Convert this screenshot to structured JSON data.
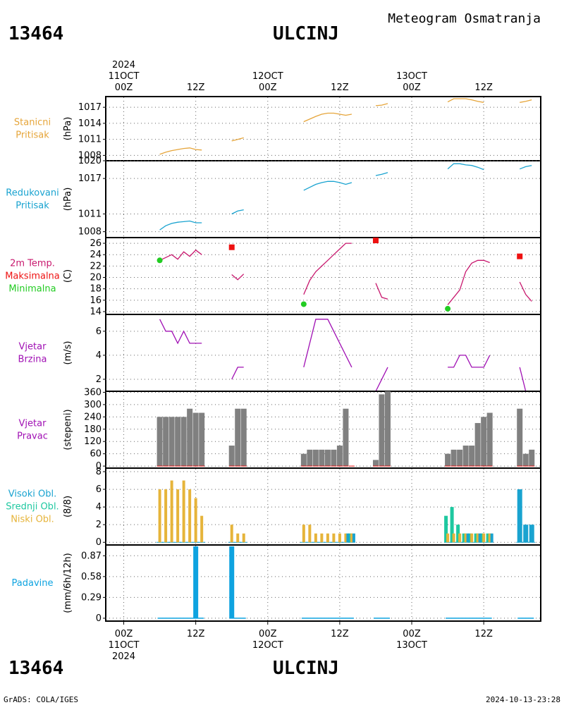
{
  "header": {
    "station_id": "13464",
    "station_name": "ULCINJ",
    "product": "Meteogram Osmatranja",
    "footer_left": "GrADS: COLA/IGES",
    "footer_right": "2024-10-13-23:28"
  },
  "time_axis": {
    "top": [
      {
        "x": 0,
        "lines": [
          "2024",
          "11OCT",
          "00Z"
        ]
      },
      {
        "x": 12,
        "lines": [
          "12Z"
        ]
      },
      {
        "x": 24,
        "lines": [
          "12OCT",
          "00Z"
        ]
      },
      {
        "x": 36,
        "lines": [
          "12Z"
        ]
      },
      {
        "x": 48,
        "lines": [
          "13OCT",
          "00Z"
        ]
      },
      {
        "x": 60,
        "lines": [
          "12Z"
        ]
      }
    ],
    "bottom": [
      {
        "x": 0,
        "lines": [
          "00Z",
          "11OCT",
          "2024"
        ]
      },
      {
        "x": 12,
        "lines": [
          "12Z"
        ]
      },
      {
        "x": 24,
        "lines": [
          "00Z",
          "12OCT"
        ]
      },
      {
        "x": 36,
        "lines": [
          "12Z"
        ]
      },
      {
        "x": 48,
        "lines": [
          "00Z",
          "13OCT"
        ]
      },
      {
        "x": 60,
        "lines": [
          "12Z"
        ]
      }
    ]
  },
  "colors": {
    "station_pressure": "#e6a53a",
    "sea_pressure": "#19a3d0",
    "temperature": "#c8186e",
    "tmax": "#ee1111",
    "tmin": "#22cc22",
    "wind": "#a010b4",
    "wind_dir_bar": "#808080",
    "cloud_high": "#19a3d0",
    "cloud_mid": "#1ec8a0",
    "cloud_low": "#e6b43a",
    "precip": "#0ea3e0",
    "grid": "#666666"
  },
  "chart_data": [
    {
      "type": "line",
      "label_lines": [
        "Stanicni",
        "Pritisak"
      ],
      "ylabel": "(hPa)",
      "ylim": [
        1007,
        1019
      ],
      "yticks": [
        1008,
        1011,
        1014,
        1017
      ],
      "segments": [
        [
          [
            6,
            1008.2
          ],
          [
            7,
            1008.6
          ],
          [
            8,
            1008.9
          ],
          [
            9,
            1009.1
          ],
          [
            10,
            1009.3
          ],
          [
            11,
            1009.4
          ],
          [
            12,
            1009.1
          ],
          [
            13,
            1009.0
          ]
        ],
        [
          [
            18,
            1010.7
          ],
          [
            19,
            1011.0
          ],
          [
            20,
            1011.3
          ]
        ],
        [
          [
            30,
            1014.3
          ],
          [
            31,
            1014.8
          ],
          [
            32,
            1015.3
          ],
          [
            33,
            1015.7
          ],
          [
            34,
            1015.9
          ],
          [
            35,
            1015.9
          ],
          [
            36,
            1015.7
          ],
          [
            37,
            1015.5
          ],
          [
            38,
            1015.7
          ]
        ],
        [
          [
            42,
            1017.3
          ],
          [
            43,
            1017.4
          ],
          [
            44,
            1017.7
          ]
        ],
        [
          [
            54,
            1018.0
          ],
          [
            55,
            1018.6
          ],
          [
            56,
            1018.6
          ],
          [
            57,
            1018.6
          ],
          [
            58,
            1018.4
          ],
          [
            59,
            1018.1
          ],
          [
            60,
            1017.9
          ]
        ],
        [
          [
            66,
            1017.9
          ],
          [
            67,
            1018.1
          ],
          [
            68,
            1018.4
          ]
        ]
      ]
    },
    {
      "type": "line",
      "label_lines": [
        "Redukovani",
        "Pritisak"
      ],
      "ylabel": "(hPa)",
      "ylim": [
        1007,
        1020
      ],
      "yticks": [
        1008,
        1011,
        1017,
        1020
      ],
      "segments": [
        [
          [
            6,
            1008.3
          ],
          [
            7,
            1009.0
          ],
          [
            8,
            1009.4
          ],
          [
            9,
            1009.6
          ],
          [
            10,
            1009.7
          ],
          [
            11,
            1009.8
          ],
          [
            12,
            1009.5
          ],
          [
            13,
            1009.5
          ]
        ],
        [
          [
            18,
            1011.0
          ],
          [
            19,
            1011.5
          ],
          [
            20,
            1011.7
          ]
        ],
        [
          [
            30,
            1015.0
          ],
          [
            31,
            1015.5
          ],
          [
            32,
            1016.0
          ],
          [
            33,
            1016.3
          ],
          [
            34,
            1016.5
          ],
          [
            35,
            1016.5
          ],
          [
            36,
            1016.3
          ],
          [
            37,
            1016.0
          ],
          [
            38,
            1016.3
          ]
        ],
        [
          [
            42,
            1017.5
          ],
          [
            43,
            1017.7
          ],
          [
            44,
            1018.0
          ]
        ],
        [
          [
            54,
            1018.6
          ],
          [
            55,
            1019.5
          ],
          [
            56,
            1019.5
          ],
          [
            57,
            1019.3
          ],
          [
            58,
            1019.2
          ],
          [
            59,
            1018.9
          ],
          [
            60,
            1018.5
          ]
        ],
        [
          [
            66,
            1018.6
          ],
          [
            67,
            1019.0
          ],
          [
            68,
            1019.2
          ]
        ]
      ]
    },
    {
      "type": "line",
      "label_lines": [
        "2m Temp.",
        "Maksimalna",
        "Minimalna"
      ],
      "ylabel": "(C)",
      "ylim": [
        13.5,
        27
      ],
      "yticks": [
        14,
        16,
        18,
        20,
        22,
        24,
        26
      ],
      "segments": [
        [
          [
            6,
            23.0
          ],
          [
            7,
            23.5
          ],
          [
            8,
            24.0
          ],
          [
            9,
            23.2
          ],
          [
            10,
            24.5
          ],
          [
            11,
            23.7
          ],
          [
            12,
            24.8
          ],
          [
            13,
            24.0
          ]
        ],
        [
          [
            18,
            20.5
          ],
          [
            19,
            19.6
          ],
          [
            20,
            20.6
          ]
        ],
        [
          [
            30,
            17.0
          ],
          [
            31,
            19.5
          ],
          [
            32,
            21.0
          ],
          [
            33,
            22.0
          ],
          [
            34,
            23.0
          ],
          [
            35,
            24.0
          ],
          [
            36,
            25.0
          ],
          [
            37,
            26.0
          ],
          [
            38,
            26.0
          ]
        ],
        [
          [
            42,
            19.0
          ],
          [
            43,
            16.5
          ],
          [
            44,
            16.2
          ]
        ],
        [
          [
            54,
            15.2
          ],
          [
            55,
            16.5
          ],
          [
            56,
            17.8
          ],
          [
            57,
            21.0
          ],
          [
            58,
            22.5
          ],
          [
            59,
            23.0
          ],
          [
            60,
            23.0
          ],
          [
            61,
            22.6
          ]
        ],
        [
          [
            66,
            19.2
          ],
          [
            67,
            17.0
          ],
          [
            68,
            15.8
          ]
        ]
      ],
      "tmax": [
        [
          18,
          25.3
        ],
        [
          42,
          26.5
        ],
        [
          66,
          23.7
        ]
      ],
      "tmin": [
        [
          6,
          23.0
        ],
        [
          30,
          15.3
        ],
        [
          54,
          14.5
        ]
      ]
    },
    {
      "type": "line",
      "label_lines": [
        "Vjetar",
        "Brzina"
      ],
      "ylabel": "(m/s)",
      "ylim": [
        1,
        7.4
      ],
      "yticks": [
        2,
        4,
        6
      ],
      "segments": [
        [
          [
            6,
            7
          ],
          [
            7,
            6
          ],
          [
            8,
            6
          ],
          [
            9,
            5
          ],
          [
            10,
            6
          ],
          [
            11,
            5
          ],
          [
            12,
            5
          ],
          [
            13,
            5
          ]
        ],
        [
          [
            18,
            2
          ],
          [
            19,
            3
          ],
          [
            20,
            3
          ]
        ],
        [
          [
            30,
            3
          ],
          [
            32,
            7
          ],
          [
            34,
            7
          ],
          [
            36,
            5
          ],
          [
            38,
            3
          ]
        ],
        [
          [
            42,
            1
          ],
          [
            44,
            3
          ]
        ],
        [
          [
            54,
            3
          ],
          [
            55,
            3
          ],
          [
            56,
            4
          ],
          [
            57,
            4
          ],
          [
            58,
            3
          ],
          [
            59,
            3
          ],
          [
            60,
            3
          ],
          [
            61,
            4
          ]
        ],
        [
          [
            66,
            3
          ],
          [
            67,
            1
          ],
          [
            68,
            1
          ]
        ]
      ]
    },
    {
      "type": "bar",
      "label_lines": [
        "Vjetar",
        "Pravac"
      ],
      "ylabel": "(stepeni)",
      "ylim": [
        -10,
        365
      ],
      "yticks": [
        0,
        60,
        120,
        180,
        240,
        300,
        360
      ],
      "x": [
        6,
        7,
        8,
        9,
        10,
        11,
        12,
        13,
        18,
        19,
        20,
        30,
        31,
        32,
        33,
        34,
        35,
        36,
        37,
        38,
        42,
        43,
        44,
        54,
        55,
        56,
        57,
        58,
        59,
        60,
        61,
        66,
        67,
        68
      ],
      "values": [
        240,
        240,
        240,
        240,
        240,
        280,
        260,
        260,
        100,
        280,
        280,
        60,
        80,
        80,
        80,
        80,
        80,
        100,
        280,
        0,
        30,
        350,
        370,
        60,
        80,
        80,
        100,
        100,
        210,
        240,
        260,
        280,
        60,
        80
      ]
    },
    {
      "type": "bar",
      "label_lines": [
        "Visoki Obl.",
        "Srednji Obl.",
        "Niski Obl."
      ],
      "ylabel": "(8/8)",
      "ylim": [
        -0.3,
        8.4
      ],
      "yticks": [
        0,
        2,
        4,
        6,
        8
      ],
      "low": [
        [
          6,
          6
        ],
        [
          7,
          6
        ],
        [
          8,
          7
        ],
        [
          9,
          6
        ],
        [
          10,
          7
        ],
        [
          11,
          6
        ],
        [
          12,
          5
        ],
        [
          13,
          3
        ],
        [
          18,
          2
        ],
        [
          19,
          1
        ],
        [
          20,
          1
        ],
        [
          30,
          2
        ],
        [
          31,
          2
        ],
        [
          32,
          1
        ],
        [
          33,
          1
        ],
        [
          34,
          1
        ],
        [
          35,
          1
        ],
        [
          36,
          1
        ],
        [
          37,
          1
        ],
        [
          38,
          1
        ],
        [
          54,
          1
        ],
        [
          55,
          1
        ],
        [
          56,
          1
        ],
        [
          57,
          1
        ],
        [
          58,
          1
        ],
        [
          59,
          1
        ],
        [
          60,
          1
        ],
        [
          61,
          1
        ]
      ],
      "mid": [
        [
          54,
          3
        ],
        [
          55,
          4
        ],
        [
          56,
          2
        ],
        [
          57,
          1
        ],
        [
          58,
          1
        ],
        [
          59,
          1
        ],
        [
          60,
          1
        ],
        [
          61,
          1
        ],
        [
          38,
          1
        ]
      ],
      "high": [
        [
          66,
          6
        ],
        [
          67,
          2
        ],
        [
          68,
          2
        ],
        [
          57,
          1
        ],
        [
          59,
          1
        ],
        [
          61,
          1
        ],
        [
          37,
          1
        ],
        [
          38,
          1
        ]
      ]
    },
    {
      "type": "bar",
      "label_lines": [
        "Padavine"
      ],
      "ylabel": "(mm/6h/12h)",
      "ylim": [
        -0.04,
        1.02
      ],
      "yticks": [
        0,
        0.29,
        0.58,
        0.87
      ],
      "ytick_labels": [
        "0",
        "0.29",
        "0.58",
        "0.87"
      ],
      "x": [
        12,
        18
      ],
      "values": [
        1.0,
        1.0
      ]
    }
  ]
}
